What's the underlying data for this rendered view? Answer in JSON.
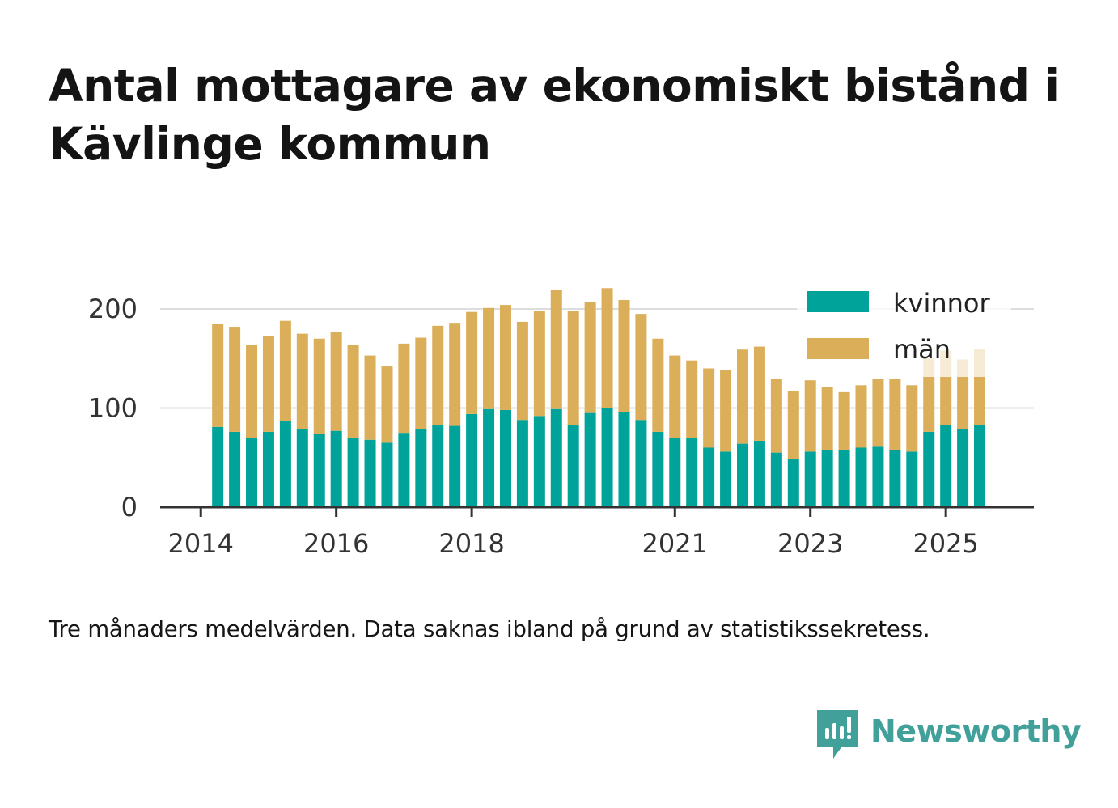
{
  "title": "Antal mottagare av ekonomiskt bistånd i Kävlinge kommun",
  "note": "Tre månaders medelvärden. Data saknas ibland på grund av statistikssekretess.",
  "brand": {
    "name": "Newsworthy",
    "color": "#41a09a",
    "icon": "newsworthy-logo-icon"
  },
  "colors": {
    "kvinnor": "#00a39a",
    "man": "#dbae5a",
    "grid": "#dddddd",
    "axis": "#333333"
  },
  "chart_data": {
    "type": "bar",
    "stacked": true,
    "title": "Antal mottagare av ekonomiskt bistånd i Kävlinge kommun",
    "xlabel": "",
    "ylabel": "",
    "ylim": [
      0,
      230
    ],
    "yticks": [
      0,
      100,
      200
    ],
    "grid": true,
    "legend_position": "top-right",
    "x_start": 2014.0,
    "x_step": 0.25,
    "x_range": [
      2014,
      2026.25
    ],
    "xticks": [
      {
        "year": 2014,
        "label": "2014"
      },
      {
        "year": 2016,
        "label": "2016"
      },
      {
        "year": 2018,
        "label": "2018"
      },
      {
        "year": 2021,
        "label": "2021"
      },
      {
        "year": 2023,
        "label": "2023"
      },
      {
        "year": 2025,
        "label": "2025"
      }
    ],
    "series": [
      {
        "name": "kvinnor",
        "values": [
          null,
          81,
          76,
          70,
          76,
          87,
          79,
          74,
          77,
          70,
          68,
          65,
          75,
          79,
          83,
          82,
          94,
          99,
          98,
          88,
          92,
          99,
          83,
          95,
          100,
          96,
          88,
          76,
          70,
          70,
          60,
          56,
          64,
          67,
          55,
          49,
          56,
          58,
          58,
          60,
          61,
          58,
          56,
          76,
          83,
          79,
          83
        ]
      },
      {
        "name": "män",
        "values": [
          null,
          104,
          106,
          94,
          97,
          101,
          96,
          96,
          100,
          94,
          85,
          77,
          90,
          92,
          100,
          104,
          103,
          102,
          106,
          99,
          106,
          120,
          115,
          112,
          121,
          113,
          107,
          94,
          83,
          78,
          80,
          82,
          95,
          95,
          74,
          68,
          72,
          63,
          58,
          63,
          68,
          71,
          67,
          74,
          75,
          70,
          77
        ]
      }
    ],
    "estimated_last_n": 4
  }
}
